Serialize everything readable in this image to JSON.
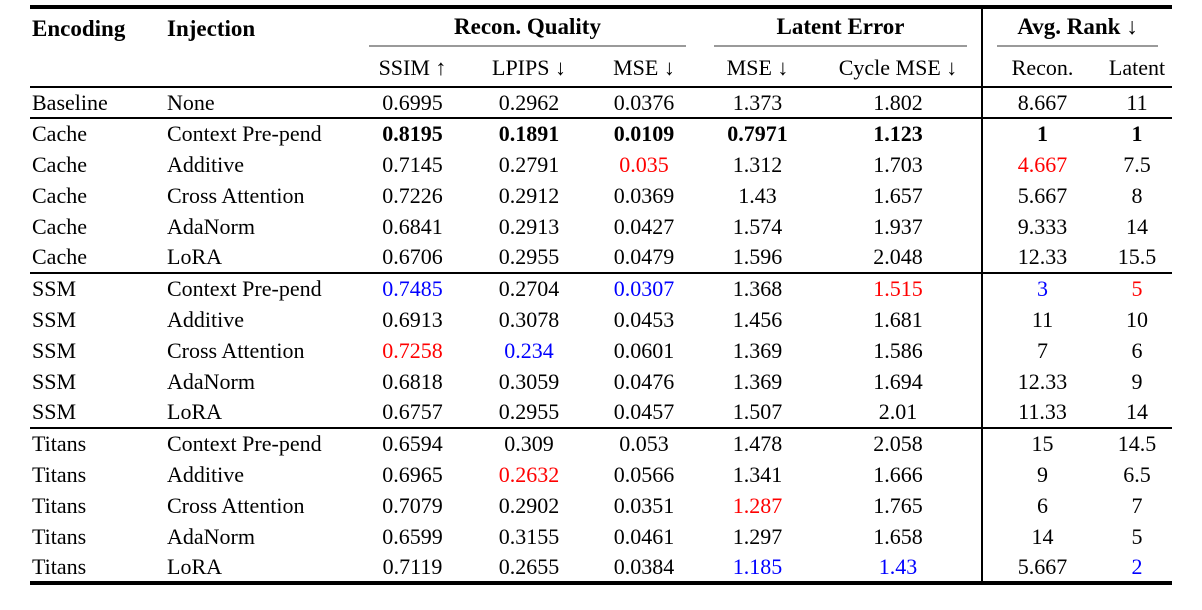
{
  "colors": {
    "red": "#ff0000",
    "blue": "#0000ff",
    "rule_dark": "#000000",
    "rule_light": "#9a9a9a"
  },
  "table": {
    "headers": {
      "encoding": "Encoding",
      "injection": "Injection",
      "groups": [
        {
          "label": "Recon. Quality"
        },
        {
          "label": "Latent Error"
        },
        {
          "label": "Avg. Rank ↓"
        }
      ],
      "sub": [
        "SSIM ↑",
        "LPIPS ↓",
        "MSE ↓",
        "MSE ↓",
        "Cycle MSE ↓",
        "Recon.",
        "Latent"
      ]
    },
    "sections": [
      {
        "name": "baseline",
        "rows": [
          {
            "encoding": "Baseline",
            "injection": "None",
            "values": [
              "0.6995",
              "0.2962",
              "0.0376",
              "1.373",
              "1.802",
              "8.667",
              "11"
            ],
            "styles": [
              "",
              "",
              "",
              "",
              "",
              "",
              ""
            ]
          }
        ]
      },
      {
        "name": "cache",
        "rows": [
          {
            "encoding": "Cache",
            "injection": "Context Pre-pend",
            "values": [
              "0.8195",
              "0.1891",
              "0.0109",
              "0.7971",
              "1.123",
              "1",
              "1"
            ],
            "styles": [
              "bold",
              "bold",
              "bold",
              "bold",
              "bold",
              "bold",
              "bold"
            ]
          },
          {
            "encoding": "Cache",
            "injection": "Additive",
            "values": [
              "0.7145",
              "0.2791",
              "0.035",
              "1.312",
              "1.703",
              "4.667",
              "7.5"
            ],
            "styles": [
              "",
              "",
              "red",
              "",
              "",
              "red",
              ""
            ]
          },
          {
            "encoding": "Cache",
            "injection": "Cross Attention",
            "values": [
              "0.7226",
              "0.2912",
              "0.0369",
              "1.43",
              "1.657",
              "5.667",
              "8"
            ],
            "styles": [
              "",
              "",
              "",
              "",
              "",
              "",
              ""
            ]
          },
          {
            "encoding": "Cache",
            "injection": "AdaNorm",
            "values": [
              "0.6841",
              "0.2913",
              "0.0427",
              "1.574",
              "1.937",
              "9.333",
              "14"
            ],
            "styles": [
              "",
              "",
              "",
              "",
              "",
              "",
              ""
            ]
          },
          {
            "encoding": "Cache",
            "injection": "LoRA",
            "values": [
              "0.6706",
              "0.2955",
              "0.0479",
              "1.596",
              "2.048",
              "12.33",
              "15.5"
            ],
            "styles": [
              "",
              "",
              "",
              "",
              "",
              "",
              ""
            ]
          }
        ]
      },
      {
        "name": "ssm",
        "rows": [
          {
            "encoding": "SSM",
            "injection": "Context Pre-pend",
            "values": [
              "0.7485",
              "0.2704",
              "0.0307",
              "1.368",
              "1.515",
              "3",
              "5"
            ],
            "styles": [
              "blue",
              "",
              "blue",
              "",
              "red",
              "blue",
              "red"
            ]
          },
          {
            "encoding": "SSM",
            "injection": "Additive",
            "values": [
              "0.6913",
              "0.3078",
              "0.0453",
              "1.456",
              "1.681",
              "11",
              "10"
            ],
            "styles": [
              "",
              "",
              "",
              "",
              "",
              "",
              ""
            ]
          },
          {
            "encoding": "SSM",
            "injection": "Cross Attention",
            "values": [
              "0.7258",
              "0.234",
              "0.0601",
              "1.369",
              "1.586",
              "7",
              "6"
            ],
            "styles": [
              "red",
              "blue",
              "",
              "",
              "",
              "",
              ""
            ]
          },
          {
            "encoding": "SSM",
            "injection": "AdaNorm",
            "values": [
              "0.6818",
              "0.3059",
              "0.0476",
              "1.369",
              "1.694",
              "12.33",
              "9"
            ],
            "styles": [
              "",
              "",
              "",
              "",
              "",
              "",
              ""
            ]
          },
          {
            "encoding": "SSM",
            "injection": "LoRA",
            "values": [
              "0.6757",
              "0.2955",
              "0.0457",
              "1.507",
              "2.01",
              "11.33",
              "14"
            ],
            "styles": [
              "",
              "",
              "",
              "",
              "",
              "",
              ""
            ]
          }
        ]
      },
      {
        "name": "titans",
        "rows": [
          {
            "encoding": "Titans",
            "injection": "Context Pre-pend",
            "values": [
              "0.6594",
              "0.309",
              "0.053",
              "1.478",
              "2.058",
              "15",
              "14.5"
            ],
            "styles": [
              "",
              "",
              "",
              "",
              "",
              "",
              ""
            ]
          },
          {
            "encoding": "Titans",
            "injection": "Additive",
            "values": [
              "0.6965",
              "0.2632",
              "0.0566",
              "1.341",
              "1.666",
              "9",
              "6.5"
            ],
            "styles": [
              "",
              "red",
              "",
              "",
              "",
              "",
              ""
            ]
          },
          {
            "encoding": "Titans",
            "injection": "Cross Attention",
            "values": [
              "0.7079",
              "0.2902",
              "0.0351",
              "1.287",
              "1.765",
              "6",
              "7"
            ],
            "styles": [
              "",
              "",
              "",
              "red",
              "",
              "",
              ""
            ]
          },
          {
            "encoding": "Titans",
            "injection": "AdaNorm",
            "values": [
              "0.6599",
              "0.3155",
              "0.0461",
              "1.297",
              "1.658",
              "14",
              "5"
            ],
            "styles": [
              "",
              "",
              "",
              "",
              "",
              "",
              ""
            ]
          },
          {
            "encoding": "Titans",
            "injection": "LoRA",
            "values": [
              "0.7119",
              "0.2655",
              "0.0384",
              "1.185",
              "1.43",
              "5.667",
              "2"
            ],
            "styles": [
              "",
              "",
              "",
              "blue",
              "blue",
              "",
              "blue"
            ]
          }
        ]
      }
    ]
  }
}
